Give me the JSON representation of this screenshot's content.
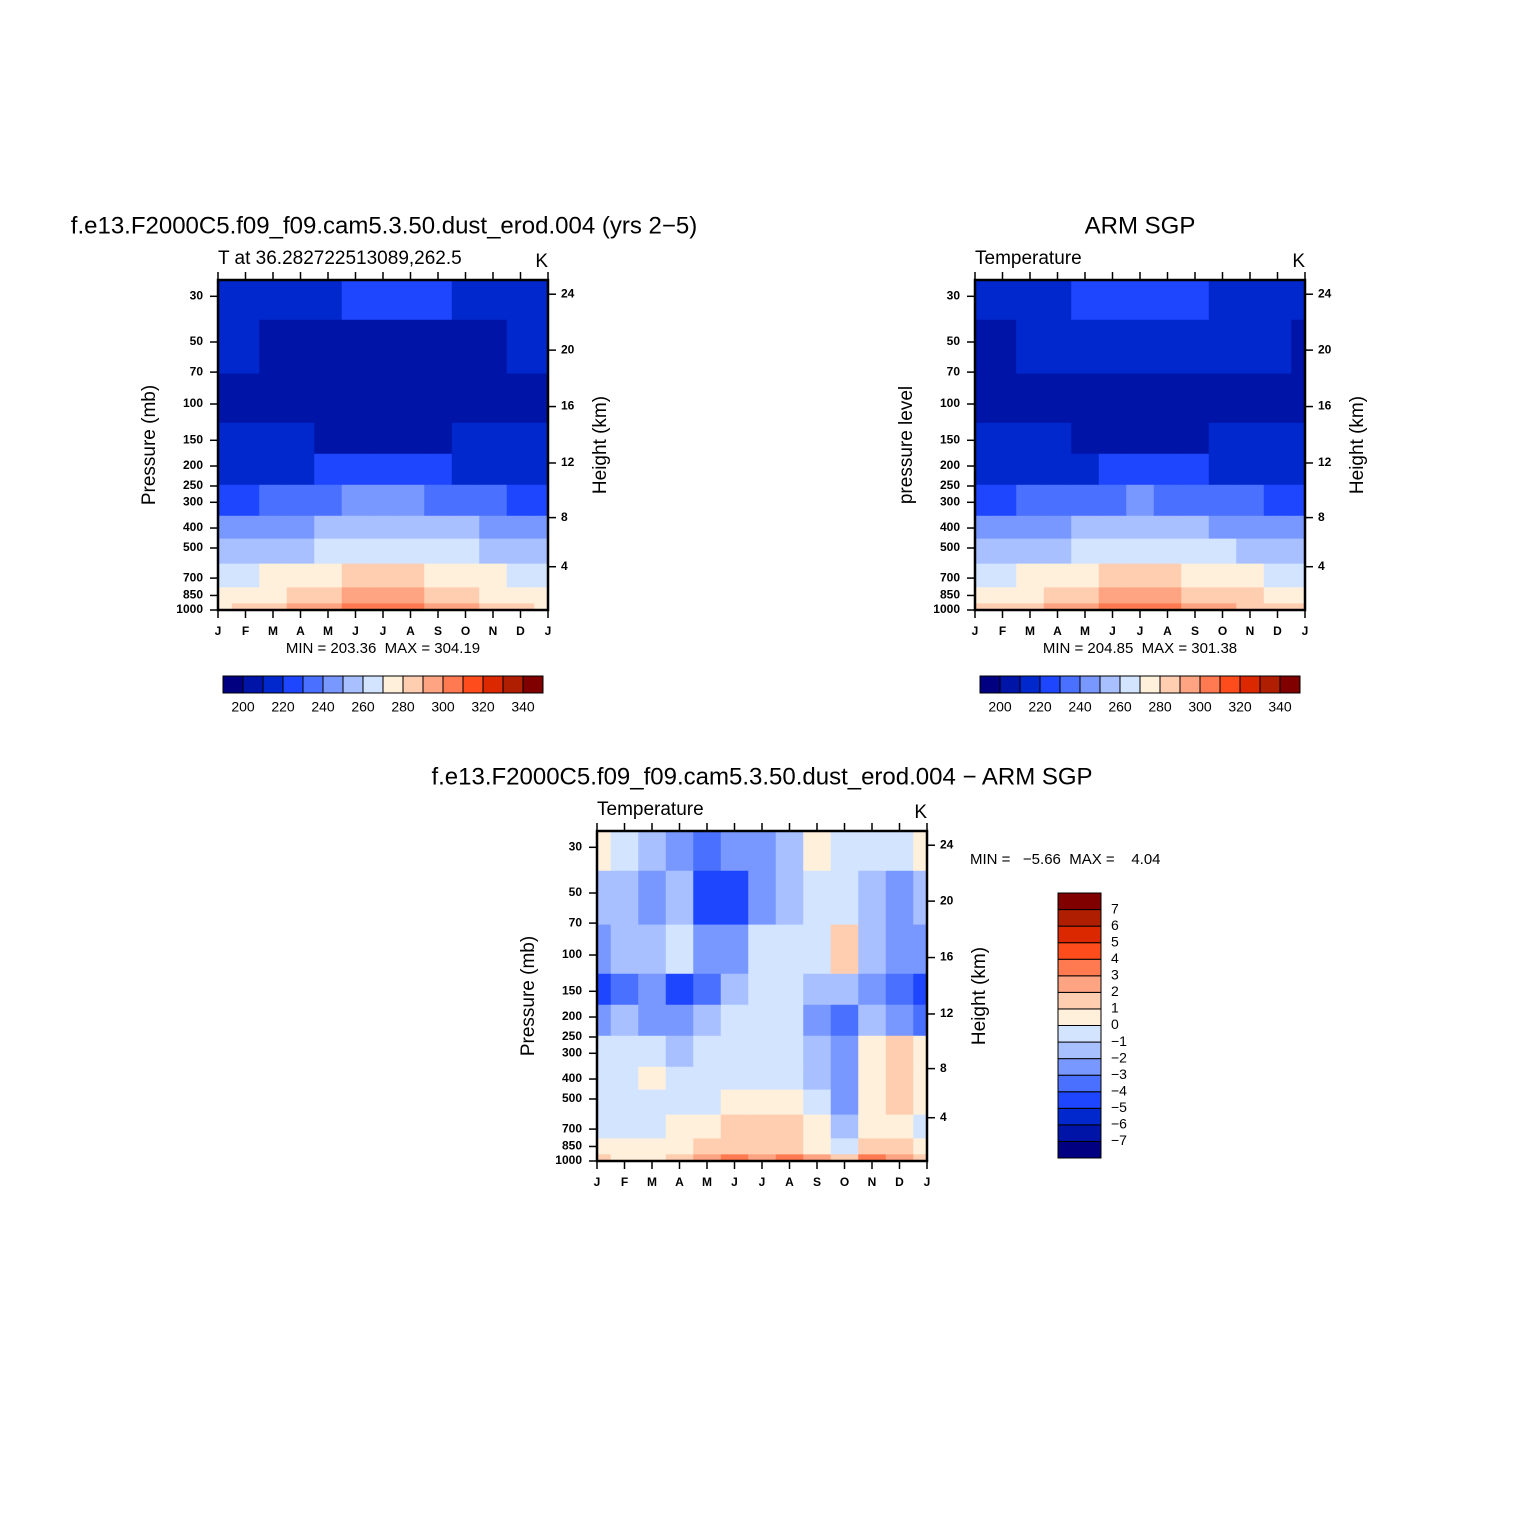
{
  "chart_data": [
    {
      "type": "contour",
      "title": "f.e13.F2000C5.f09_f09.cam5.3.50.dust_erod.004 (yrs 2−5)",
      "subtitle_left": "T at 36.282722513089,262.5",
      "subtitle_right": "K",
      "ylabel": "Pressure (mb)",
      "y2label": "Height (km)",
      "stats": "MIN = 203.36  MAX = 304.19",
      "categories": [
        "J",
        "F",
        "M",
        "A",
        "M",
        "J",
        "J",
        "A",
        "S",
        "O",
        "N",
        "D",
        "J"
      ],
      "y": [
        1000,
        850,
        700,
        500,
        400,
        300,
        200,
        150,
        100,
        50,
        30
      ],
      "ylim": [
        1000,
        25
      ],
      "ylog": true,
      "yticks": [
        30,
        50,
        70,
        100,
        150,
        200,
        250,
        300,
        400,
        500,
        700,
        850,
        1000
      ],
      "y2lim": [
        0.1,
        25.3
      ],
      "y2ticks": [
        4,
        8,
        12,
        16,
        20,
        24
      ],
      "z": [
        [
          279,
          280,
          284,
          290,
          297,
          302,
          304,
          303,
          298,
          292,
          285,
          281,
          279
        ],
        [
          274,
          275,
          278,
          283,
          288,
          292,
          294,
          293,
          289,
          284,
          279,
          276,
          274
        ],
        [
          267,
          268,
          270,
          274,
          278,
          281,
          283,
          282,
          279,
          275,
          271,
          268,
          267
        ],
        [
          252,
          253,
          255,
          259,
          263,
          266,
          268,
          267,
          264,
          260,
          256,
          253,
          252
        ],
        [
          242,
          243,
          245,
          249,
          253,
          256,
          257,
          256,
          253,
          250,
          246,
          243,
          242
        ],
        [
          228,
          229,
          231,
          234,
          237,
          240,
          241,
          240,
          238,
          235,
          231,
          229,
          228
        ],
        [
          216,
          216,
          217,
          219,
          220,
          221,
          222,
          222,
          220,
          219,
          218,
          217,
          216
        ],
        [
          212,
          212,
          211,
          210,
          209,
          208,
          208,
          208,
          209,
          210,
          211,
          212,
          212
        ],
        [
          206,
          206,
          205,
          205,
          204,
          203,
          203,
          203,
          204,
          205,
          205,
          206,
          206
        ],
        [
          211,
          210,
          209,
          208,
          207,
          206,
          205,
          205,
          206,
          207,
          208,
          210,
          211
        ],
        [
          214,
          214,
          216,
          218,
          219,
          220,
          222,
          221,
          220,
          218,
          216,
          215,
          214
        ]
      ],
      "colorbar_orientation": "horizontal",
      "levels": [
        200,
        210,
        220,
        230,
        240,
        250,
        260,
        270,
        280,
        290,
        300,
        310,
        320,
        330,
        340
      ],
      "level_ticks": [
        200,
        220,
        240,
        260,
        280,
        300,
        320,
        340
      ],
      "colors": [
        "#000080",
        "#0014a8",
        "#0028cc",
        "#1e46ff",
        "#4a70ff",
        "#7898ff",
        "#a8c0ff",
        "#d2e4ff",
        "#fff0dc",
        "#ffcdb0",
        "#ffa482",
        "#ff7a50",
        "#ff4c1c",
        "#dc2800",
        "#b01e00",
        "#800000"
      ]
    },
    {
      "type": "contour",
      "title": "ARM SGP",
      "subtitle_left": "Temperature",
      "subtitle_right": "K",
      "ylabel": "pressure level",
      "y2label": "Height (km)",
      "stats": "MIN = 204.85  MAX = 301.38",
      "categories": [
        "J",
        "F",
        "M",
        "A",
        "M",
        "J",
        "J",
        "A",
        "S",
        "O",
        "N",
        "D",
        "J"
      ],
      "y": [
        1000,
        850,
        700,
        500,
        400,
        300,
        200,
        150,
        100,
        50,
        30
      ],
      "ylim": [
        1000,
        25
      ],
      "ylog": true,
      "yticks": [
        30,
        50,
        70,
        100,
        150,
        200,
        250,
        300,
        400,
        500,
        700,
        850,
        1000
      ],
      "y2lim": [
        0.1,
        25.3
      ],
      "y2ticks": [
        4,
        8,
        12,
        16,
        20,
        24
      ],
      "z": [
        [
          280,
          281,
          284,
          290,
          295,
          300,
          301,
          301,
          297,
          291,
          286,
          282,
          280
        ],
        [
          275,
          276,
          279,
          283,
          288,
          291,
          293,
          292,
          289,
          284,
          280,
          276,
          275
        ],
        [
          268,
          269,
          271,
          274,
          278,
          281,
          282,
          281,
          279,
          275,
          272,
          269,
          268
        ],
        [
          252,
          253,
          255,
          259,
          263,
          266,
          267,
          266,
          263,
          260,
          256,
          253,
          252
        ],
        [
          242,
          243,
          245,
          248,
          252,
          255,
          256,
          255,
          253,
          249,
          246,
          243,
          242
        ],
        [
          228,
          229,
          230,
          233,
          236,
          239,
          240,
          239,
          237,
          234,
          231,
          229,
          228
        ],
        [
          216,
          216,
          217,
          218,
          219,
          220,
          221,
          221,
          220,
          219,
          217,
          216,
          216
        ],
        [
          213,
          213,
          212,
          210,
          209,
          208,
          207,
          207,
          208,
          210,
          212,
          213,
          213
        ],
        [
          209,
          209,
          208,
          206,
          205,
          204,
          203,
          203,
          204,
          206,
          208,
          209,
          209
        ],
        [
          209,
          209,
          211,
          212,
          212,
          212,
          211,
          212,
          212,
          212,
          211,
          210,
          209
        ],
        [
          216,
          216,
          217,
          219,
          220,
          221,
          222,
          221,
          220,
          219,
          217,
          216,
          216
        ]
      ],
      "colorbar_orientation": "horizontal",
      "levels": [
        200,
        210,
        220,
        230,
        240,
        250,
        260,
        270,
        280,
        290,
        300,
        310,
        320,
        330,
        340
      ],
      "level_ticks": [
        200,
        220,
        240,
        260,
        280,
        300,
        320,
        340
      ],
      "colors": [
        "#000080",
        "#0014a8",
        "#0028cc",
        "#1e46ff",
        "#4a70ff",
        "#7898ff",
        "#a8c0ff",
        "#d2e4ff",
        "#fff0dc",
        "#ffcdb0",
        "#ffa482",
        "#ff7a50",
        "#ff4c1c",
        "#dc2800",
        "#b01e00",
        "#800000"
      ]
    },
    {
      "type": "contour",
      "title": "f.e13.F2000C5.f09_f09.cam5.3.50.dust_erod.004 − ARM SGP",
      "subtitle_left": "Temperature",
      "subtitle_right": "K",
      "ylabel": "Pressure (mb)",
      "y2label": "Height (km)",
      "stats": "MIN =   −5.66  MAX =    4.04",
      "categories": [
        "J",
        "F",
        "M",
        "A",
        "M",
        "J",
        "J",
        "A",
        "S",
        "O",
        "N",
        "D",
        "J"
      ],
      "y": [
        1000,
        850,
        700,
        500,
        400,
        300,
        200,
        150,
        100,
        50,
        30
      ],
      "ylim": [
        1000,
        25
      ],
      "ylog": true,
      "yticks": [
        30,
        50,
        70,
        100,
        150,
        200,
        250,
        300,
        400,
        500,
        700,
        850,
        1000
      ],
      "y2lim": [
        0.1,
        25.3
      ],
      "y2ticks": [
        4,
        8,
        12,
        16,
        20,
        24
      ],
      "z": [
        [
          1,
          0,
          0,
          1,
          2,
          3,
          2,
          3,
          2,
          1,
          3,
          2,
          1
        ],
        [
          0,
          0,
          0,
          0,
          1,
          1,
          1,
          1,
          0,
          -1,
          1,
          1,
          0
        ],
        [
          -1,
          -1,
          -1,
          0,
          0,
          1,
          1,
          1,
          0,
          -2,
          0,
          0,
          -1
        ],
        [
          -1,
          -1,
          -1,
          -1,
          -1,
          0,
          0,
          0,
          -1,
          -3,
          0,
          1,
          0
        ],
        [
          -1,
          -1,
          0,
          -1,
          -1,
          -1,
          -1,
          -1,
          -2,
          -3,
          0,
          1,
          0
        ],
        [
          -1,
          -1,
          -1,
          -2,
          -1,
          -1,
          -1,
          -1,
          -2,
          -3,
          0,
          1,
          0
        ],
        [
          -3,
          -2,
          -3,
          -3,
          -2,
          -1,
          -1,
          -1,
          -3,
          -4,
          -2,
          -3,
          -4
        ],
        [
          -5,
          -4,
          -3,
          -5,
          -4,
          -2,
          -1,
          -1,
          -2,
          -2,
          -3,
          -4,
          -5
        ],
        [
          -3,
          -2,
          -2,
          -1,
          -3,
          -3,
          -1,
          -1,
          -1,
          1,
          -2,
          -3,
          -3
        ],
        [
          -2,
          -2,
          -3,
          -2,
          -5,
          -5,
          -3,
          -2,
          -1,
          -1,
          -2,
          -3,
          -2
        ],
        [
          0,
          -1,
          -2,
          -3,
          -4,
          -3,
          -3,
          -2,
          0,
          -1,
          -1,
          -1,
          0
        ]
      ],
      "colorbar_orientation": "vertical",
      "levels": [
        -7,
        -6,
        -5,
        -4,
        -3,
        -2,
        -1,
        0,
        1,
        2,
        3,
        4,
        5,
        6,
        7
      ],
      "level_ticks": [
        {
          "value": -7,
          "label": "−7"
        },
        {
          "value": -6,
          "label": "−6"
        },
        {
          "value": -5,
          "label": "−5"
        },
        {
          "value": -4,
          "label": "−4"
        },
        {
          "value": -3,
          "label": "−3"
        },
        {
          "value": -2,
          "label": "−2"
        },
        {
          "value": -1,
          "label": "−1"
        },
        0,
        1,
        2,
        3,
        4,
        5,
        6,
        7
      ],
      "colors": [
        "#000080",
        "#0014a8",
        "#0028cc",
        "#1e46ff",
        "#4a70ff",
        "#7898ff",
        "#a8c0ff",
        "#d2e4ff",
        "#fff0dc",
        "#ffcdb0",
        "#ffa482",
        "#ff7a50",
        "#ff4c1c",
        "#dc2800",
        "#b01e00",
        "#800000"
      ]
    }
  ]
}
